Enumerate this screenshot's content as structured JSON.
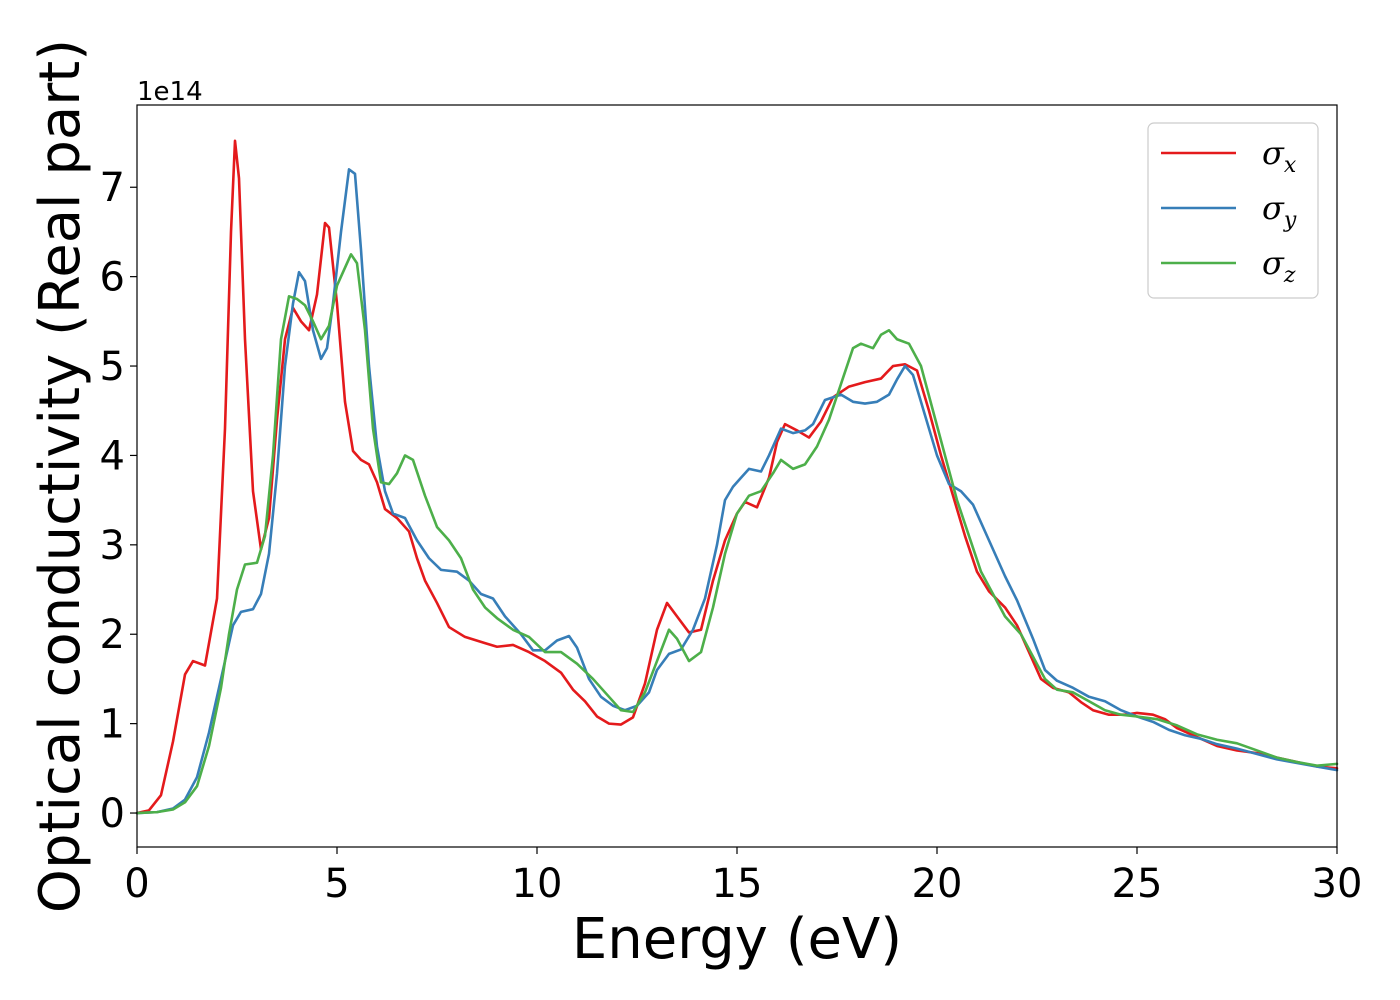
{
  "chart_data": {
    "type": "line",
    "xlabel": "Energy (eV)",
    "ylabel": "Optical conductivity (Real part)",
    "y_offset_label": "1e14",
    "xlim": [
      0,
      30
    ],
    "ylim": [
      -0.38,
      7.92
    ],
    "x_ticks": [
      0,
      5,
      10,
      15,
      20,
      25,
      30
    ],
    "y_ticks": [
      0,
      1,
      2,
      3,
      4,
      5,
      6,
      7
    ],
    "grid": false,
    "legend_position": "top-right",
    "series": [
      {
        "name_base": "σ",
        "name_sub": "x",
        "color": "#e41a1c",
        "points": [
          [
            0,
            0
          ],
          [
            0.3,
            0.03
          ],
          [
            0.6,
            0.2
          ],
          [
            0.9,
            0.8
          ],
          [
            1.2,
            1.55
          ],
          [
            1.4,
            1.7
          ],
          [
            1.7,
            1.65
          ],
          [
            2.0,
            2.4
          ],
          [
            2.2,
            4.3
          ],
          [
            2.35,
            6.5
          ],
          [
            2.45,
            7.52
          ],
          [
            2.55,
            7.1
          ],
          [
            2.7,
            5.3
          ],
          [
            2.9,
            3.6
          ],
          [
            3.1,
            2.95
          ],
          [
            3.3,
            3.3
          ],
          [
            3.5,
            4.4
          ],
          [
            3.7,
            5.3
          ],
          [
            3.9,
            5.65
          ],
          [
            4.1,
            5.5
          ],
          [
            4.3,
            5.4
          ],
          [
            4.5,
            5.8
          ],
          [
            4.7,
            6.6
          ],
          [
            4.8,
            6.55
          ],
          [
            5.0,
            5.7
          ],
          [
            5.2,
            4.6
          ],
          [
            5.4,
            4.05
          ],
          [
            5.6,
            3.95
          ],
          [
            5.8,
            3.9
          ],
          [
            6.0,
            3.7
          ],
          [
            6.2,
            3.4
          ],
          [
            6.5,
            3.3
          ],
          [
            6.8,
            3.15
          ],
          [
            7.0,
            2.85
          ],
          [
            7.2,
            2.6
          ],
          [
            7.5,
            2.35
          ],
          [
            7.8,
            2.08
          ],
          [
            8.2,
            1.97
          ],
          [
            8.7,
            1.9
          ],
          [
            9.0,
            1.86
          ],
          [
            9.4,
            1.88
          ],
          [
            9.8,
            1.8
          ],
          [
            10.2,
            1.7
          ],
          [
            10.6,
            1.57
          ],
          [
            10.9,
            1.38
          ],
          [
            11.2,
            1.25
          ],
          [
            11.5,
            1.08
          ],
          [
            11.8,
            1.0
          ],
          [
            12.1,
            0.99
          ],
          [
            12.4,
            1.07
          ],
          [
            12.7,
            1.45
          ],
          [
            13.0,
            2.05
          ],
          [
            13.25,
            2.35
          ],
          [
            13.5,
            2.2
          ],
          [
            13.8,
            2.02
          ],
          [
            14.1,
            2.05
          ],
          [
            14.4,
            2.6
          ],
          [
            14.7,
            3.05
          ],
          [
            15.0,
            3.35
          ],
          [
            15.2,
            3.48
          ],
          [
            15.5,
            3.42
          ],
          [
            15.8,
            3.75
          ],
          [
            16.0,
            4.15
          ],
          [
            16.2,
            4.35
          ],
          [
            16.5,
            4.28
          ],
          [
            16.8,
            4.2
          ],
          [
            17.1,
            4.38
          ],
          [
            17.4,
            4.65
          ],
          [
            17.8,
            4.77
          ],
          [
            18.2,
            4.82
          ],
          [
            18.6,
            4.86
          ],
          [
            18.9,
            5.0
          ],
          [
            19.2,
            5.02
          ],
          [
            19.5,
            4.95
          ],
          [
            19.8,
            4.5
          ],
          [
            20.1,
            4.0
          ],
          [
            20.4,
            3.55
          ],
          [
            20.7,
            3.1
          ],
          [
            21.0,
            2.7
          ],
          [
            21.3,
            2.48
          ],
          [
            21.7,
            2.3
          ],
          [
            22.0,
            2.1
          ],
          [
            22.3,
            1.8
          ],
          [
            22.6,
            1.5
          ],
          [
            22.9,
            1.4
          ],
          [
            23.3,
            1.35
          ],
          [
            23.6,
            1.24
          ],
          [
            23.9,
            1.15
          ],
          [
            24.3,
            1.1
          ],
          [
            24.7,
            1.1
          ],
          [
            25.0,
            1.12
          ],
          [
            25.4,
            1.1
          ],
          [
            25.7,
            1.05
          ],
          [
            26.0,
            0.95
          ],
          [
            26.5,
            0.85
          ],
          [
            27.0,
            0.75
          ],
          [
            27.5,
            0.7
          ],
          [
            28.0,
            0.67
          ],
          [
            28.5,
            0.62
          ],
          [
            29.0,
            0.57
          ],
          [
            29.5,
            0.52
          ],
          [
            30,
            0.5
          ]
        ]
      },
      {
        "name_base": "σ",
        "name_sub": "y",
        "color": "#377eb8",
        "points": [
          [
            0,
            0
          ],
          [
            0.5,
            0.01
          ],
          [
            0.9,
            0.05
          ],
          [
            1.2,
            0.15
          ],
          [
            1.5,
            0.4
          ],
          [
            1.8,
            0.9
          ],
          [
            2.1,
            1.5
          ],
          [
            2.4,
            2.1
          ],
          [
            2.6,
            2.25
          ],
          [
            2.9,
            2.28
          ],
          [
            3.1,
            2.45
          ],
          [
            3.3,
            2.9
          ],
          [
            3.5,
            3.8
          ],
          [
            3.7,
            5.0
          ],
          [
            3.9,
            5.7
          ],
          [
            4.05,
            6.05
          ],
          [
            4.2,
            5.95
          ],
          [
            4.4,
            5.4
          ],
          [
            4.6,
            5.08
          ],
          [
            4.75,
            5.2
          ],
          [
            4.9,
            5.7
          ],
          [
            5.1,
            6.5
          ],
          [
            5.3,
            7.2
          ],
          [
            5.45,
            7.15
          ],
          [
            5.6,
            6.3
          ],
          [
            5.8,
            5.0
          ],
          [
            6.0,
            4.1
          ],
          [
            6.2,
            3.6
          ],
          [
            6.4,
            3.35
          ],
          [
            6.7,
            3.3
          ],
          [
            7.0,
            3.05
          ],
          [
            7.3,
            2.85
          ],
          [
            7.6,
            2.72
          ],
          [
            8.0,
            2.7
          ],
          [
            8.3,
            2.6
          ],
          [
            8.6,
            2.45
          ],
          [
            8.9,
            2.4
          ],
          [
            9.2,
            2.2
          ],
          [
            9.6,
            2.0
          ],
          [
            9.9,
            1.82
          ],
          [
            10.2,
            1.82
          ],
          [
            10.5,
            1.93
          ],
          [
            10.8,
            1.98
          ],
          [
            11.0,
            1.85
          ],
          [
            11.3,
            1.5
          ],
          [
            11.6,
            1.3
          ],
          [
            11.9,
            1.2
          ],
          [
            12.2,
            1.15
          ],
          [
            12.5,
            1.2
          ],
          [
            12.8,
            1.35
          ],
          [
            13.0,
            1.6
          ],
          [
            13.3,
            1.78
          ],
          [
            13.6,
            1.83
          ],
          [
            13.9,
            2.05
          ],
          [
            14.2,
            2.4
          ],
          [
            14.5,
            3.0
          ],
          [
            14.7,
            3.5
          ],
          [
            14.9,
            3.65
          ],
          [
            15.1,
            3.75
          ],
          [
            15.3,
            3.85
          ],
          [
            15.6,
            3.82
          ],
          [
            15.8,
            4.0
          ],
          [
            16.1,
            4.3
          ],
          [
            16.4,
            4.25
          ],
          [
            16.7,
            4.28
          ],
          [
            16.9,
            4.35
          ],
          [
            17.2,
            4.62
          ],
          [
            17.6,
            4.68
          ],
          [
            17.9,
            4.6
          ],
          [
            18.2,
            4.58
          ],
          [
            18.5,
            4.6
          ],
          [
            18.8,
            4.68
          ],
          [
            19.0,
            4.85
          ],
          [
            19.2,
            5.0
          ],
          [
            19.4,
            4.9
          ],
          [
            19.7,
            4.45
          ],
          [
            20.0,
            4.0
          ],
          [
            20.3,
            3.68
          ],
          [
            20.6,
            3.6
          ],
          [
            20.9,
            3.45
          ],
          [
            21.3,
            3.05
          ],
          [
            21.7,
            2.65
          ],
          [
            22.0,
            2.38
          ],
          [
            22.4,
            1.95
          ],
          [
            22.7,
            1.6
          ],
          [
            23.0,
            1.48
          ],
          [
            23.4,
            1.4
          ],
          [
            23.8,
            1.3
          ],
          [
            24.2,
            1.25
          ],
          [
            24.6,
            1.15
          ],
          [
            25.0,
            1.08
          ],
          [
            25.4,
            1.02
          ],
          [
            25.8,
            0.93
          ],
          [
            26.2,
            0.87
          ],
          [
            26.6,
            0.83
          ],
          [
            27.0,
            0.77
          ],
          [
            27.5,
            0.72
          ],
          [
            28.0,
            0.66
          ],
          [
            28.5,
            0.6
          ],
          [
            29.0,
            0.56
          ],
          [
            29.5,
            0.52
          ],
          [
            30,
            0.48
          ]
        ]
      },
      {
        "name_base": "σ",
        "name_sub": "z",
        "color": "#4daf4a",
        "points": [
          [
            0,
            0
          ],
          [
            0.5,
            0.01
          ],
          [
            0.9,
            0.04
          ],
          [
            1.2,
            0.12
          ],
          [
            1.5,
            0.3
          ],
          [
            1.8,
            0.75
          ],
          [
            2.1,
            1.4
          ],
          [
            2.3,
            2.0
          ],
          [
            2.5,
            2.5
          ],
          [
            2.7,
            2.78
          ],
          [
            3.0,
            2.8
          ],
          [
            3.2,
            3.1
          ],
          [
            3.4,
            4.0
          ],
          [
            3.6,
            5.3
          ],
          [
            3.8,
            5.78
          ],
          [
            4.0,
            5.75
          ],
          [
            4.2,
            5.68
          ],
          [
            4.4,
            5.5
          ],
          [
            4.6,
            5.3
          ],
          [
            4.8,
            5.45
          ],
          [
            5.0,
            5.9
          ],
          [
            5.2,
            6.1
          ],
          [
            5.35,
            6.25
          ],
          [
            5.5,
            6.15
          ],
          [
            5.7,
            5.4
          ],
          [
            5.9,
            4.3
          ],
          [
            6.1,
            3.7
          ],
          [
            6.3,
            3.68
          ],
          [
            6.5,
            3.8
          ],
          [
            6.7,
            4.0
          ],
          [
            6.9,
            3.95
          ],
          [
            7.2,
            3.55
          ],
          [
            7.5,
            3.2
          ],
          [
            7.8,
            3.05
          ],
          [
            8.1,
            2.85
          ],
          [
            8.4,
            2.5
          ],
          [
            8.7,
            2.3
          ],
          [
            9.0,
            2.18
          ],
          [
            9.4,
            2.05
          ],
          [
            9.8,
            1.97
          ],
          [
            10.2,
            1.8
          ],
          [
            10.6,
            1.8
          ],
          [
            11.0,
            1.67
          ],
          [
            11.4,
            1.5
          ],
          [
            11.8,
            1.3
          ],
          [
            12.1,
            1.15
          ],
          [
            12.4,
            1.13
          ],
          [
            12.7,
            1.35
          ],
          [
            13.0,
            1.7
          ],
          [
            13.3,
            2.05
          ],
          [
            13.5,
            1.95
          ],
          [
            13.8,
            1.7
          ],
          [
            14.1,
            1.8
          ],
          [
            14.4,
            2.3
          ],
          [
            14.7,
            2.9
          ],
          [
            15.0,
            3.35
          ],
          [
            15.3,
            3.55
          ],
          [
            15.6,
            3.6
          ],
          [
            15.9,
            3.8
          ],
          [
            16.1,
            3.95
          ],
          [
            16.4,
            3.85
          ],
          [
            16.7,
            3.9
          ],
          [
            17.0,
            4.1
          ],
          [
            17.3,
            4.4
          ],
          [
            17.6,
            4.8
          ],
          [
            17.9,
            5.2
          ],
          [
            18.1,
            5.25
          ],
          [
            18.4,
            5.2
          ],
          [
            18.6,
            5.35
          ],
          [
            18.8,
            5.4
          ],
          [
            19.0,
            5.3
          ],
          [
            19.3,
            5.25
          ],
          [
            19.6,
            5.0
          ],
          [
            19.9,
            4.5
          ],
          [
            20.2,
            4.0
          ],
          [
            20.5,
            3.5
          ],
          [
            20.8,
            3.1
          ],
          [
            21.1,
            2.7
          ],
          [
            21.4,
            2.45
          ],
          [
            21.7,
            2.2
          ],
          [
            22.1,
            2.0
          ],
          [
            22.4,
            1.75
          ],
          [
            22.7,
            1.5
          ],
          [
            23.0,
            1.38
          ],
          [
            23.4,
            1.35
          ],
          [
            23.8,
            1.25
          ],
          [
            24.2,
            1.15
          ],
          [
            24.6,
            1.1
          ],
          [
            25.0,
            1.08
          ],
          [
            25.5,
            1.05
          ],
          [
            26.0,
            0.98
          ],
          [
            26.5,
            0.88
          ],
          [
            27.0,
            0.82
          ],
          [
            27.5,
            0.78
          ],
          [
            28.0,
            0.7
          ],
          [
            28.5,
            0.62
          ],
          [
            29.0,
            0.57
          ],
          [
            29.5,
            0.53
          ],
          [
            30,
            0.55
          ]
        ]
      }
    ]
  }
}
